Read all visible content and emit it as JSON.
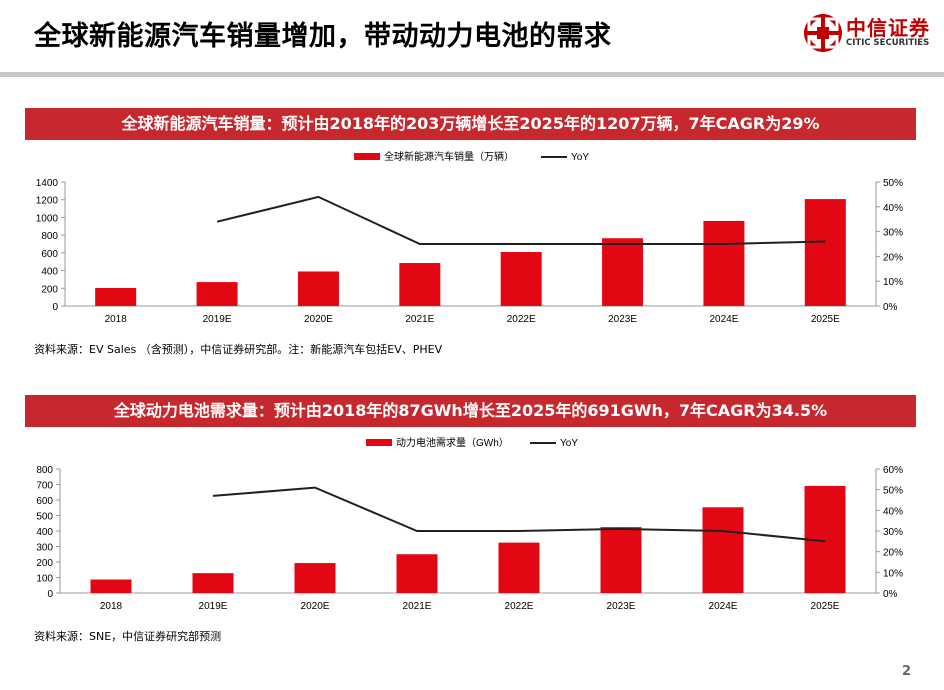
{
  "header": {
    "title": "全球新能源汽车销量增加，带动动力电池的需求",
    "logo_cn": "中信证券",
    "logo_en": "CITIC SECURITIES"
  },
  "page_number": "2",
  "colors": {
    "bar": "#e30613",
    "line": "#231f20",
    "banner": "#c7282e",
    "brand": "#c00000"
  },
  "chart_data": [
    {
      "type": "bar",
      "title": "全球新能源汽车销量：预计由2018年的203万辆增长至2025年的1207万辆，7年CAGR为29%",
      "categories": [
        "2018",
        "2019E",
        "2020E",
        "2021E",
        "2022E",
        "2023E",
        "2024E",
        "2025E"
      ],
      "series": [
        {
          "name": "全球新能源汽车销量（万辆）",
          "type": "bar",
          "axis": "left",
          "values": [
            203,
            270,
            390,
            485,
            610,
            765,
            960,
            1207
          ]
        },
        {
          "name": "YoY",
          "type": "line",
          "axis": "right",
          "values": [
            null,
            0.34,
            0.44,
            0.25,
            0.25,
            0.25,
            0.25,
            0.26
          ]
        }
      ],
      "y_left": {
        "lim": [
          0,
          1400
        ],
        "ticks": [
          "0",
          "200",
          "400",
          "600",
          "800",
          "1000",
          "1200",
          "1400"
        ]
      },
      "y_right": {
        "lim": [
          0,
          0.5
        ],
        "ticks": [
          "0%",
          "10%",
          "20%",
          "30%",
          "40%",
          "50%"
        ]
      },
      "legend_position": "top",
      "source": "资料来源：EV Sales （含预测），中信证券研究部。注：新能源汽车包括EV、PHEV"
    },
    {
      "type": "bar",
      "title": "全球动力电池需求量：预计由2018年的87GWh增长至2025年的691GWh，7年CAGR为34.5%",
      "categories": [
        "2018",
        "2019E",
        "2020E",
        "2021E",
        "2022E",
        "2023E",
        "2024E",
        "2025E"
      ],
      "series": [
        {
          "name": "动力电池需求量（GWh）",
          "type": "bar",
          "axis": "left",
          "values": [
            87,
            128,
            193,
            250,
            325,
            425,
            553,
            691
          ]
        },
        {
          "name": "YoY",
          "type": "line",
          "axis": "right",
          "values": [
            null,
            0.47,
            0.51,
            0.3,
            0.3,
            0.31,
            0.3,
            0.25
          ]
        }
      ],
      "y_left": {
        "lim": [
          0,
          800
        ],
        "ticks": [
          "0",
          "100",
          "200",
          "300",
          "400",
          "500",
          "600",
          "700",
          "800"
        ]
      },
      "y_right": {
        "lim": [
          0,
          0.6
        ],
        "ticks": [
          "0%",
          "10%",
          "20%",
          "30%",
          "40%",
          "50%",
          "60%"
        ]
      },
      "legend_position": "top",
      "source": "资料来源：SNE，中信证券研究部预测"
    }
  ]
}
